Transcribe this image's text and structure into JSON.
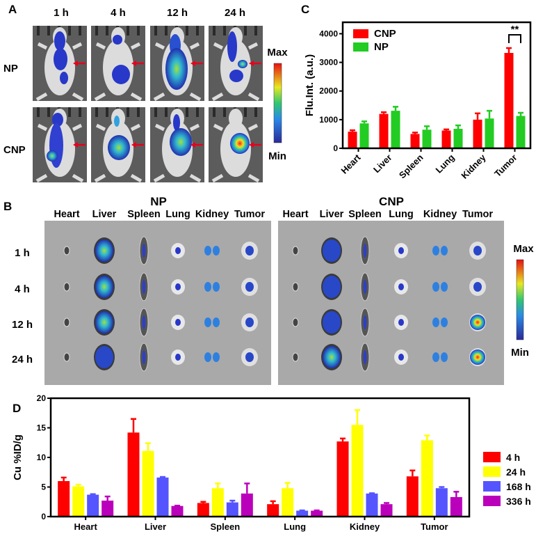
{
  "panel_labels": {
    "a": "A",
    "b": "B",
    "c": "C",
    "d": "D"
  },
  "panel_a": {
    "time_labels": [
      "1 h",
      "4 h",
      "12 h",
      "24 h"
    ],
    "row_labels": [
      "NP",
      "CNP"
    ],
    "colorbar": {
      "max": "Max",
      "min": "Min"
    },
    "arrow_color": "#e8001c"
  },
  "panel_b": {
    "group_titles": [
      "NP",
      "CNP"
    ],
    "organ_labels": [
      "Heart",
      "Liver",
      "Spleen",
      "Lung",
      "Kidney",
      "Tumor"
    ],
    "time_labels": [
      "1 h",
      "4 h",
      "12 h",
      "24 h"
    ],
    "colorbar": {
      "max": "Max",
      "min": "Min"
    }
  },
  "chart_data": [
    {
      "id": "C",
      "type": "bar",
      "ylabel": "Flu.Int. (a.u.)",
      "xlabel": "",
      "ylim": [
        0,
        4400
      ],
      "yticks": [
        "0",
        "1000",
        "2000",
        "3000",
        "4000"
      ],
      "categories": [
        "Heart",
        "Liver",
        "Spleen",
        "Lung",
        "Kidney",
        "Tumor"
      ],
      "legend_position": "top-left",
      "grid": false,
      "series": [
        {
          "name": "CNP",
          "color": "#ff0000",
          "values": [
            580,
            1200,
            500,
            620,
            1000,
            3330
          ],
          "errors": [
            50,
            60,
            50,
            40,
            220,
            170
          ]
        },
        {
          "name": "NP",
          "color": "#22cc22",
          "values": [
            870,
            1310,
            650,
            680,
            1040,
            1130
          ],
          "errors": [
            70,
            140,
            120,
            120,
            270,
            110
          ]
        }
      ],
      "annotation": {
        "text": "**",
        "category": "Tumor"
      }
    },
    {
      "id": "D",
      "type": "bar",
      "ylabel": "Cu  %ID/g",
      "xlabel": "",
      "ylim": [
        0,
        20
      ],
      "yticks": [
        "0",
        "5",
        "10",
        "15",
        "20"
      ],
      "categories": [
        "Heart",
        "Liver",
        "Spleen",
        "Lung",
        "Kidney",
        "Tumor"
      ],
      "legend_position": "right",
      "grid": false,
      "series": [
        {
          "name": "4 h",
          "color": "#ff0000",
          "values": [
            6.0,
            14.2,
            2.3,
            2.1,
            12.7,
            6.8
          ],
          "errors": [
            0.6,
            2.3,
            0.2,
            0.5,
            0.5,
            1.0
          ]
        },
        {
          "name": "24 h",
          "color": "#ffff00",
          "values": [
            5.1,
            11.1,
            4.8,
            4.8,
            15.5,
            12.9
          ],
          "errors": [
            0.3,
            1.3,
            0.8,
            0.9,
            2.5,
            0.8
          ]
        },
        {
          "name": "168 h",
          "color": "#5555ff",
          "values": [
            3.7,
            6.6,
            2.4,
            1.0,
            3.9,
            4.8
          ],
          "errors": [
            0.1,
            0.1,
            0.3,
            0.05,
            0.05,
            0.2
          ]
        },
        {
          "name": "336 h",
          "color": "#bb00bb",
          "values": [
            2.7,
            1.8,
            3.9,
            1.0,
            2.1,
            3.3
          ],
          "errors": [
            0.7,
            0.05,
            1.7,
            0.05,
            0.2,
            0.9
          ]
        }
      ]
    }
  ]
}
